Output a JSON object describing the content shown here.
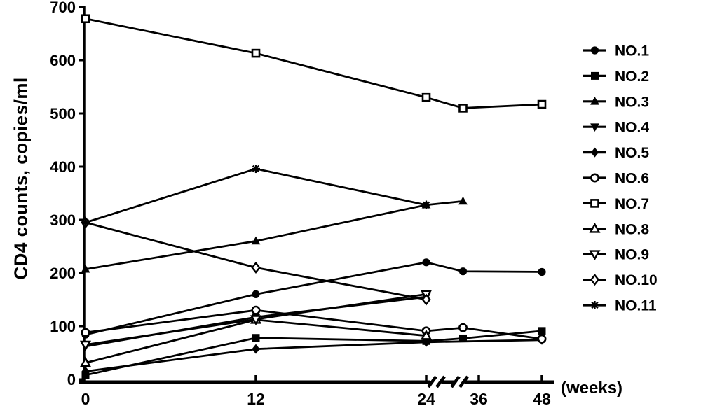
{
  "figure": {
    "background_color": "#ffffff",
    "ink_color": "#000000"
  },
  "chart_data": {
    "type": "line",
    "title": "",
    "ylabel": "CD4 counts, copies/ml",
    "xlabel": "(weeks)",
    "ylim": [
      0,
      700
    ],
    "y_ticks": [
      0,
      100,
      200,
      300,
      400,
      500,
      600,
      700
    ],
    "x_ticks": [
      0,
      12,
      24,
      36,
      48
    ],
    "x_axis_break": {
      "between": [
        24,
        36
      ],
      "style": "double-slash"
    },
    "grid": "off",
    "legend_position": "right",
    "series": [
      {
        "name": "NO.1",
        "marker": "circle-filled",
        "x": [
          0,
          12,
          24,
          33,
          48
        ],
        "values": [
          84,
          160,
          220,
          203,
          202
        ]
      },
      {
        "name": "NO.2",
        "marker": "square-filled",
        "x": [
          0,
          12,
          24,
          33,
          48
        ],
        "values": [
          8,
          78,
          72,
          77,
          91
        ]
      },
      {
        "name": "NO.3",
        "marker": "triangle-up-filled",
        "x": [
          0,
          12,
          24,
          33
        ],
        "values": [
          207,
          260,
          328,
          335
        ]
      },
      {
        "name": "NO.4",
        "marker": "triangle-down-filled",
        "x": [
          0,
          12,
          24
        ],
        "values": [
          62,
          117,
          155
        ]
      },
      {
        "name": "NO.5",
        "marker": "diamond-filled",
        "x": [
          0,
          12,
          24,
          48
        ],
        "values": [
          15,
          57,
          70,
          74
        ]
      },
      {
        "name": "NO.6",
        "marker": "circle-open",
        "x": [
          0,
          12,
          24,
          33,
          48
        ],
        "values": [
          88,
          130,
          91,
          97,
          76
        ]
      },
      {
        "name": "NO.7",
        "marker": "square-open",
        "x": [
          0,
          12,
          24,
          33,
          48
        ],
        "values": [
          678,
          613,
          530,
          510,
          517
        ]
      },
      {
        "name": "NO.8",
        "marker": "triangle-up-open",
        "x": [
          0,
          12,
          24
        ],
        "values": [
          31,
          112,
          82
        ]
      },
      {
        "name": "NO.9",
        "marker": "triangle-down-open",
        "x": [
          0,
          12,
          24
        ],
        "values": [
          65,
          113,
          160
        ]
      },
      {
        "name": "NO.10",
        "marker": "diamond-open",
        "x": [
          0,
          12,
          24
        ],
        "values": [
          295,
          210,
          150
        ]
      },
      {
        "name": "NO.11",
        "marker": "asterisk",
        "x": [
          0,
          12,
          24
        ],
        "values": [
          295,
          396,
          328
        ]
      }
    ]
  }
}
